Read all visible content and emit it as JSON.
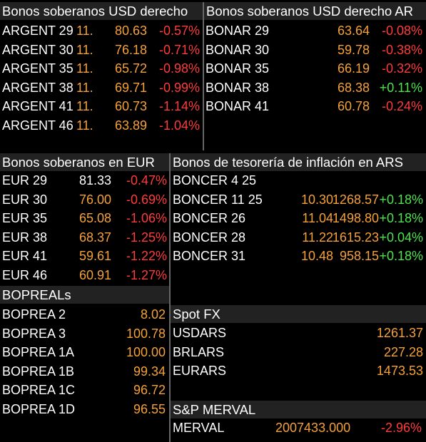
{
  "usd_derecho": {
    "title": "Bonos soberanos USD derecho",
    "rows": [
      {
        "name": "ARGENT 29",
        "tag": "11.",
        "price": "80.63",
        "chg": "-0.57%"
      },
      {
        "name": "ARGENT 30",
        "tag": "11.",
        "price": "76.18",
        "chg": "-0.71%"
      },
      {
        "name": "ARGENT 35",
        "tag": "11.",
        "price": "65.72",
        "chg": "-0.98%"
      },
      {
        "name": "ARGENT 38",
        "tag": "11.",
        "price": "69.71",
        "chg": "-0.99%"
      },
      {
        "name": "ARGENT 41",
        "tag": "11.",
        "price": "60.73",
        "chg": "-1.14%"
      },
      {
        "name": "ARGENT 46",
        "tag": "11.",
        "price": "63.89",
        "chg": "-1.04%"
      }
    ]
  },
  "usd_derecho_ar": {
    "title": "Bonos soberanos USD derecho AR",
    "rows": [
      {
        "name": "BONAR 29",
        "price": "63.64",
        "chg": "-0.08%"
      },
      {
        "name": "BONAR 30",
        "price": "59.78",
        "chg": "-0.38%"
      },
      {
        "name": "BONAR 35",
        "price": "66.19",
        "chg": "-0.32%"
      },
      {
        "name": "BONAR 38",
        "price": "68.38",
        "chg": "+0.11%"
      },
      {
        "name": "BONAR 41",
        "price": "60.78",
        "chg": "-0.24%"
      }
    ]
  },
  "eur": {
    "title": "Bonos soberanos en EUR",
    "rows": [
      {
        "name": "EUR 29",
        "price": "81.33",
        "chg": "-0.47%"
      },
      {
        "name": "EUR 30",
        "price": "76.00",
        "chg": "-0.69%"
      },
      {
        "name": "EUR 35",
        "price": "65.08",
        "chg": "-1.06%"
      },
      {
        "name": "EUR 38",
        "price": "68.37",
        "chg": "-1.25%"
      },
      {
        "name": "EUR 41",
        "price": "59.61",
        "chg": "-1.22%"
      },
      {
        "name": "EUR 46",
        "price": "60.91",
        "chg": "-1.27%"
      }
    ]
  },
  "inflacion": {
    "title": "Bonos de tesorería de inflación en ARS",
    "rows": [
      {
        "name": "BONCER 4 25",
        "yield": "",
        "price": "",
        "chg": ""
      },
      {
        "name": "BONCER 11 25",
        "yield": "10.30",
        "price": "1268.57",
        "chg": "+0.18%"
      },
      {
        "name": "BONCER 26",
        "yield": "11.04",
        "price": "1498.80",
        "chg": "+0.18%"
      },
      {
        "name": "BONCER 28",
        "yield": "11.22",
        "price": "1615.23",
        "chg": "+0.04%"
      },
      {
        "name": "BONCER 31",
        "yield": "10.48",
        "price": "958.15",
        "chg": "+0.18%"
      }
    ]
  },
  "bopreals": {
    "title": "BOPREALs",
    "rows": [
      {
        "name": "BOPREA 2",
        "price": "8.02"
      },
      {
        "name": "BOPREA 3",
        "price": "100.78"
      },
      {
        "name": "BOPREA 1A",
        "price": "100.00"
      },
      {
        "name": "BOPREA 1B",
        "price": "99.34"
      },
      {
        "name": "BOPREA 1C",
        "price": "96.72"
      },
      {
        "name": "BOPREA 1D",
        "price": "96.55"
      }
    ]
  },
  "spot_fx": {
    "title": "Spot FX",
    "rows": [
      {
        "name": "USDARS",
        "price": "1261.37"
      },
      {
        "name": "BRLARS",
        "price": "227.28"
      },
      {
        "name": "EURARS",
        "price": "1473.53"
      }
    ]
  },
  "merval": {
    "title": "S&P MERVAL",
    "rows": [
      {
        "name": "MERVAL",
        "price": "2007433.000",
        "chg": "-2.96%"
      }
    ]
  },
  "colors": {
    "orange": "#f5a13a",
    "red": "#ff3b3b",
    "green": "#4ee34e",
    "header_bg": "#222222"
  }
}
